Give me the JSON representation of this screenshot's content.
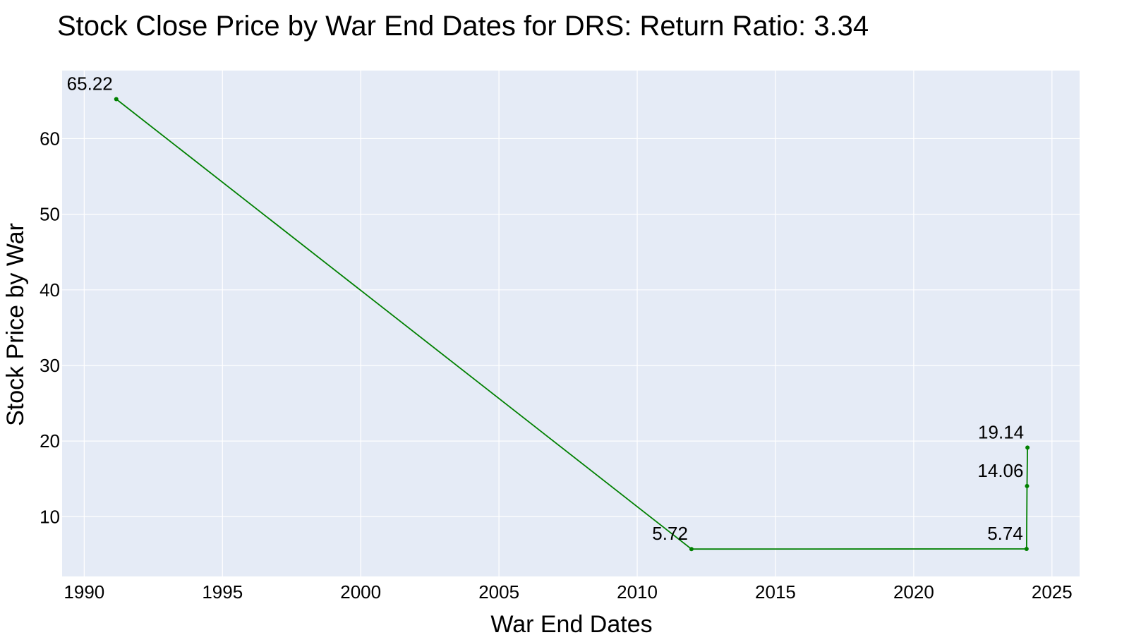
{
  "chart_data": {
    "type": "line",
    "title": "Stock Close Price by War End Dates for DRS: Return Ratio: 3.34",
    "xlabel": "War End Dates",
    "ylabel": "Stock Price by War",
    "x_ticks": [
      1990,
      1995,
      2000,
      2005,
      2010,
      2015,
      2020,
      2025
    ],
    "y_ticks": [
      10,
      20,
      30,
      40,
      50,
      60
    ],
    "xlim": [
      1989.2,
      2026
    ],
    "ylim": [
      2.1,
      69
    ],
    "grid": true,
    "legend": "none",
    "colors": {
      "series": "#008000",
      "plot_background": "#e5ebf6",
      "grid": "#ffffff"
    },
    "series": [
      {
        "x": [
          "1991-02-28",
          "2011-12-18",
          "2024-01-31",
          "2024-02-06",
          "2024-02-12"
        ],
        "y": [
          65.22,
          5.72,
          5.74,
          14.06,
          19.14
        ],
        "labels": [
          "65.22",
          "5.72",
          "5.74",
          "14.06",
          "19.14"
        ]
      }
    ]
  }
}
